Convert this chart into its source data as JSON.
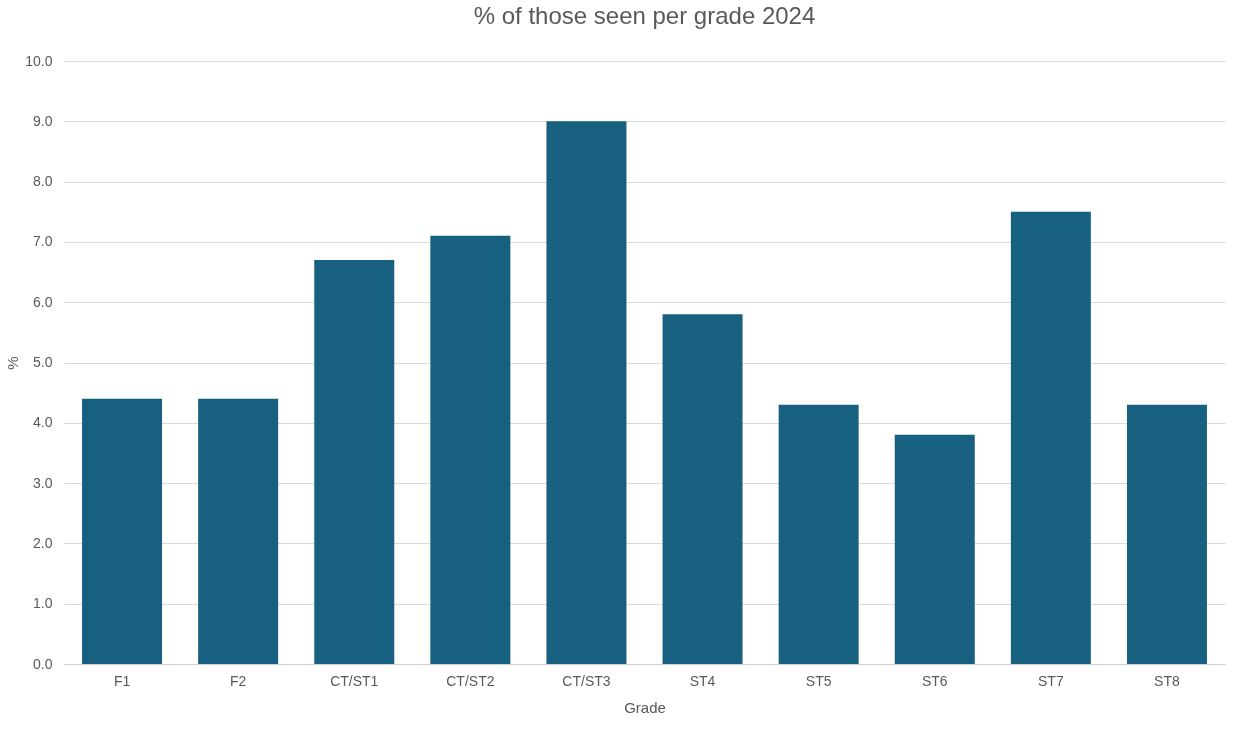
{
  "chart_data": {
    "type": "bar",
    "title": "% of those seen per grade 2024",
    "xlabel": "Grade",
    "ylabel": "%",
    "categories": [
      "F1",
      "F2",
      "CT/ST1",
      "CT/ST2",
      "CT/ST3",
      "ST4",
      "ST5",
      "ST6",
      "ST7",
      "ST8"
    ],
    "values": [
      4.4,
      4.4,
      6.7,
      7.1,
      9.0,
      5.8,
      4.3,
      3.8,
      7.5,
      4.3
    ],
    "color": "#17607f",
    "ylim": [
      0,
      10
    ],
    "yticks": [
      {
        "value": 0,
        "label": "0.0"
      },
      {
        "value": 1,
        "label": "1.0"
      },
      {
        "value": 2,
        "label": "2.0"
      },
      {
        "value": 3,
        "label": "3.0"
      },
      {
        "value": 4,
        "label": "4.0"
      },
      {
        "value": 5,
        "label": "5.0"
      },
      {
        "value": 6,
        "label": "6.0"
      },
      {
        "value": 7,
        "label": "7.0"
      },
      {
        "value": 8,
        "label": "8.0"
      },
      {
        "value": 9,
        "label": "9.0"
      },
      {
        "value": 10,
        "label": "10.0"
      }
    ],
    "grid": "y"
  }
}
